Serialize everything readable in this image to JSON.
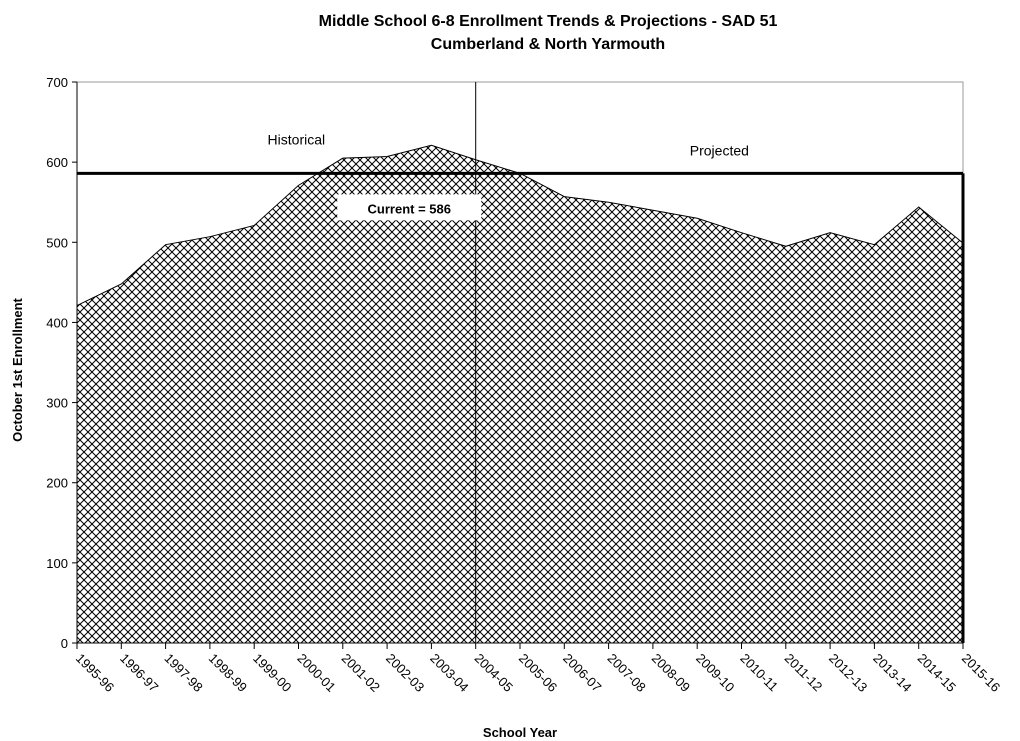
{
  "chart_data": {
    "type": "area",
    "title": "Middle School 6-8 Enrollment Trends & Projections - SAD 51",
    "subtitle": "Cumberland & North Yarmouth",
    "xlabel": "School Year",
    "ylabel": "October 1st Enrollment",
    "ylim": [
      0,
      700
    ],
    "yticks": [
      "0",
      "100",
      "200",
      "300",
      "400",
      "500",
      "600",
      "700"
    ],
    "categories": [
      "1995-96",
      "1996-97",
      "1997-98",
      "1998-99",
      "1999-00",
      "2000-01",
      "2001-02",
      "2002-03",
      "2003-04",
      "2004-05",
      "2005-06",
      "2006-07",
      "2007-08",
      "2008-09",
      "2009-10",
      "2010-11",
      "2011-12",
      "2012-13",
      "2013-14",
      "2014-15",
      "2015-16"
    ],
    "values": [
      421,
      448,
      497,
      507,
      521,
      571,
      605,
      607,
      621,
      603,
      586,
      557,
      550,
      540,
      530,
      512,
      495,
      512,
      497,
      544,
      499
    ],
    "fill_pattern": "crosshatch",
    "divider_after_category": "2004-05",
    "region_labels": {
      "historical": "Historical",
      "projected": "Projected"
    },
    "reference_line": {
      "value": 586,
      "label": "Current = 586"
    },
    "grid": false,
    "legend": "none"
  }
}
